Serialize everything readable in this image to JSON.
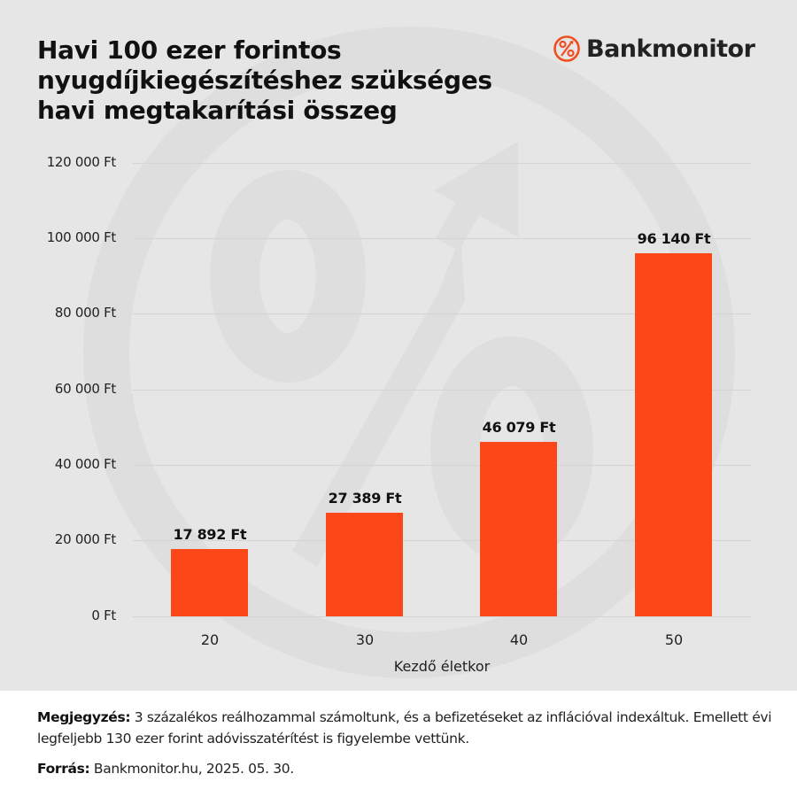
{
  "header": {
    "title_lines": [
      "Havi 100 ezer forintos",
      "nyugdíjkiegészítéshez szükséges",
      "havi megtakarítási összeg"
    ],
    "logo": {
      "icon": "percent-circle-icon",
      "text": "Bankmonitor",
      "color": "#f04e23"
    }
  },
  "chart_data": {
    "type": "bar",
    "title": "Havi 100 ezer forintos nyugdíjkiegészítéshez szükséges havi megtakarítási összeg",
    "categories": [
      "20",
      "30",
      "40",
      "50"
    ],
    "values": [
      17892,
      27389,
      46079,
      96140
    ],
    "value_labels": [
      "17 892 Ft",
      "27 389 Ft",
      "46 079 Ft",
      "96 140 Ft"
    ],
    "xlabel": "Kezdő életkor",
    "ylabel": "",
    "ylim": [
      0,
      120000
    ],
    "yticks": [
      0,
      20000,
      40000,
      60000,
      80000,
      100000,
      120000
    ],
    "ytick_labels": [
      "0 Ft",
      "20 000 Ft",
      "40 000 Ft",
      "60 000 Ft",
      "80 000 Ft",
      "100 000 Ft",
      "120 000 Ft"
    ],
    "grid": true,
    "legend": null,
    "bar_color": "#fc4819"
  },
  "footer": {
    "note_label": "Megjegyzés:",
    "note_text": " 3 százalékos reálhozammal számoltunk, és a befizetéseket az inflációval indexáltuk. Emellett évi legfeljebb 130 ezer forint adóvisszatérítést is figyelembe vettünk.",
    "source_label": "Forrás:",
    "source_text": " Bankmonitor.hu, 2025. 05. 30."
  },
  "colors": {
    "panel_bg": "#e6e6e6",
    "watermark": "#dcdcdc",
    "bar": "#fc4819",
    "brand": "#f04e23"
  }
}
